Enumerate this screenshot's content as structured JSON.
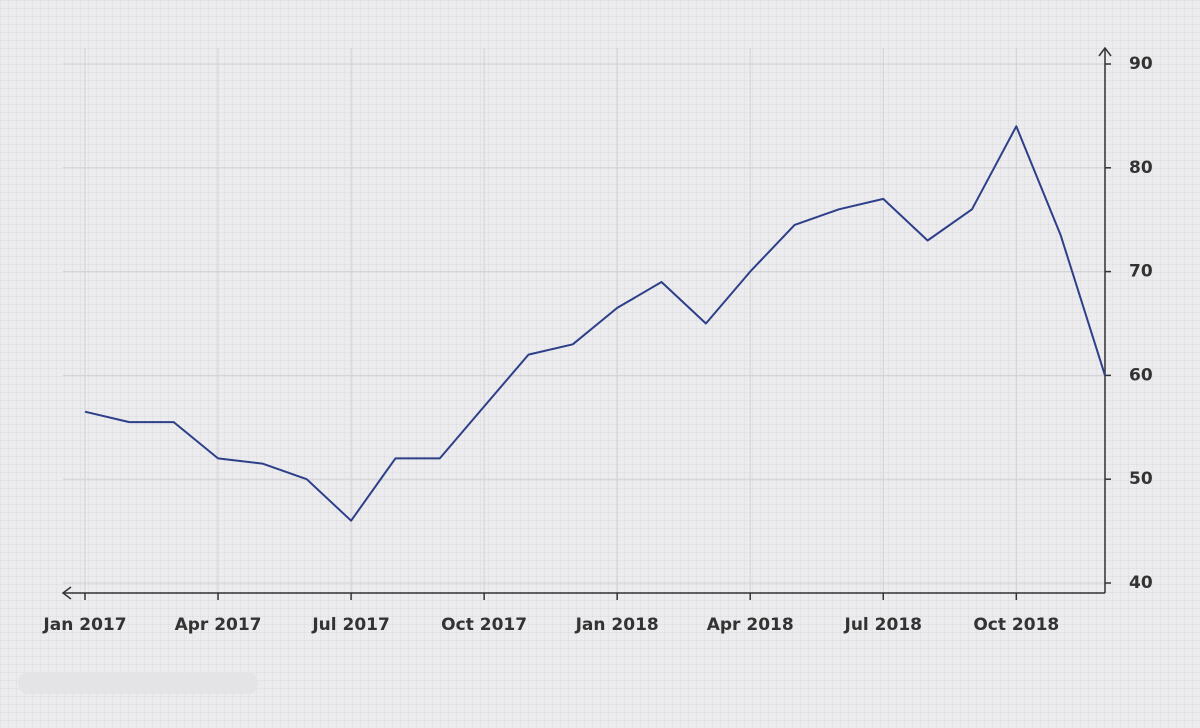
{
  "chart_data": {
    "type": "line",
    "x": [
      "2017-01",
      "2017-02",
      "2017-03",
      "2017-04",
      "2017-05",
      "2017-06",
      "2017-07",
      "2017-08",
      "2017-09",
      "2017-10",
      "2017-11",
      "2017-12",
      "2018-01",
      "2018-02",
      "2018-03",
      "2018-04",
      "2018-05",
      "2018-06",
      "2018-07",
      "2018-08",
      "2018-09",
      "2018-10",
      "2018-11",
      "2018-12"
    ],
    "series": [
      {
        "color": "#2e3f8a",
        "values": [
          56.5,
          55.5,
          55.5,
          52,
          51.5,
          50,
          46,
          52,
          52,
          57,
          62,
          63,
          66.5,
          69,
          65,
          70,
          74.5,
          76,
          77,
          73,
          76,
          84,
          73.5,
          60
        ]
      }
    ],
    "xlim": [
      "2017-01",
      "2018-12"
    ],
    "xticks": [
      {
        "value": "2017-01",
        "label": "Jan 2017"
      },
      {
        "value": "2017-04",
        "label": "Apr 2017"
      },
      {
        "value": "2017-07",
        "label": "Jul 2017"
      },
      {
        "value": "2017-10",
        "label": "Oct 2017"
      },
      {
        "value": "2018-01",
        "label": "Jan 2018"
      },
      {
        "value": "2018-04",
        "label": "Apr 2018"
      },
      {
        "value": "2018-07",
        "label": "Jul 2018"
      },
      {
        "value": "2018-10",
        "label": "Oct 2018"
      }
    ],
    "ylim": [
      40,
      90
    ],
    "yticks": [
      40,
      50,
      60,
      70,
      80,
      90
    ],
    "grid": true
  }
}
